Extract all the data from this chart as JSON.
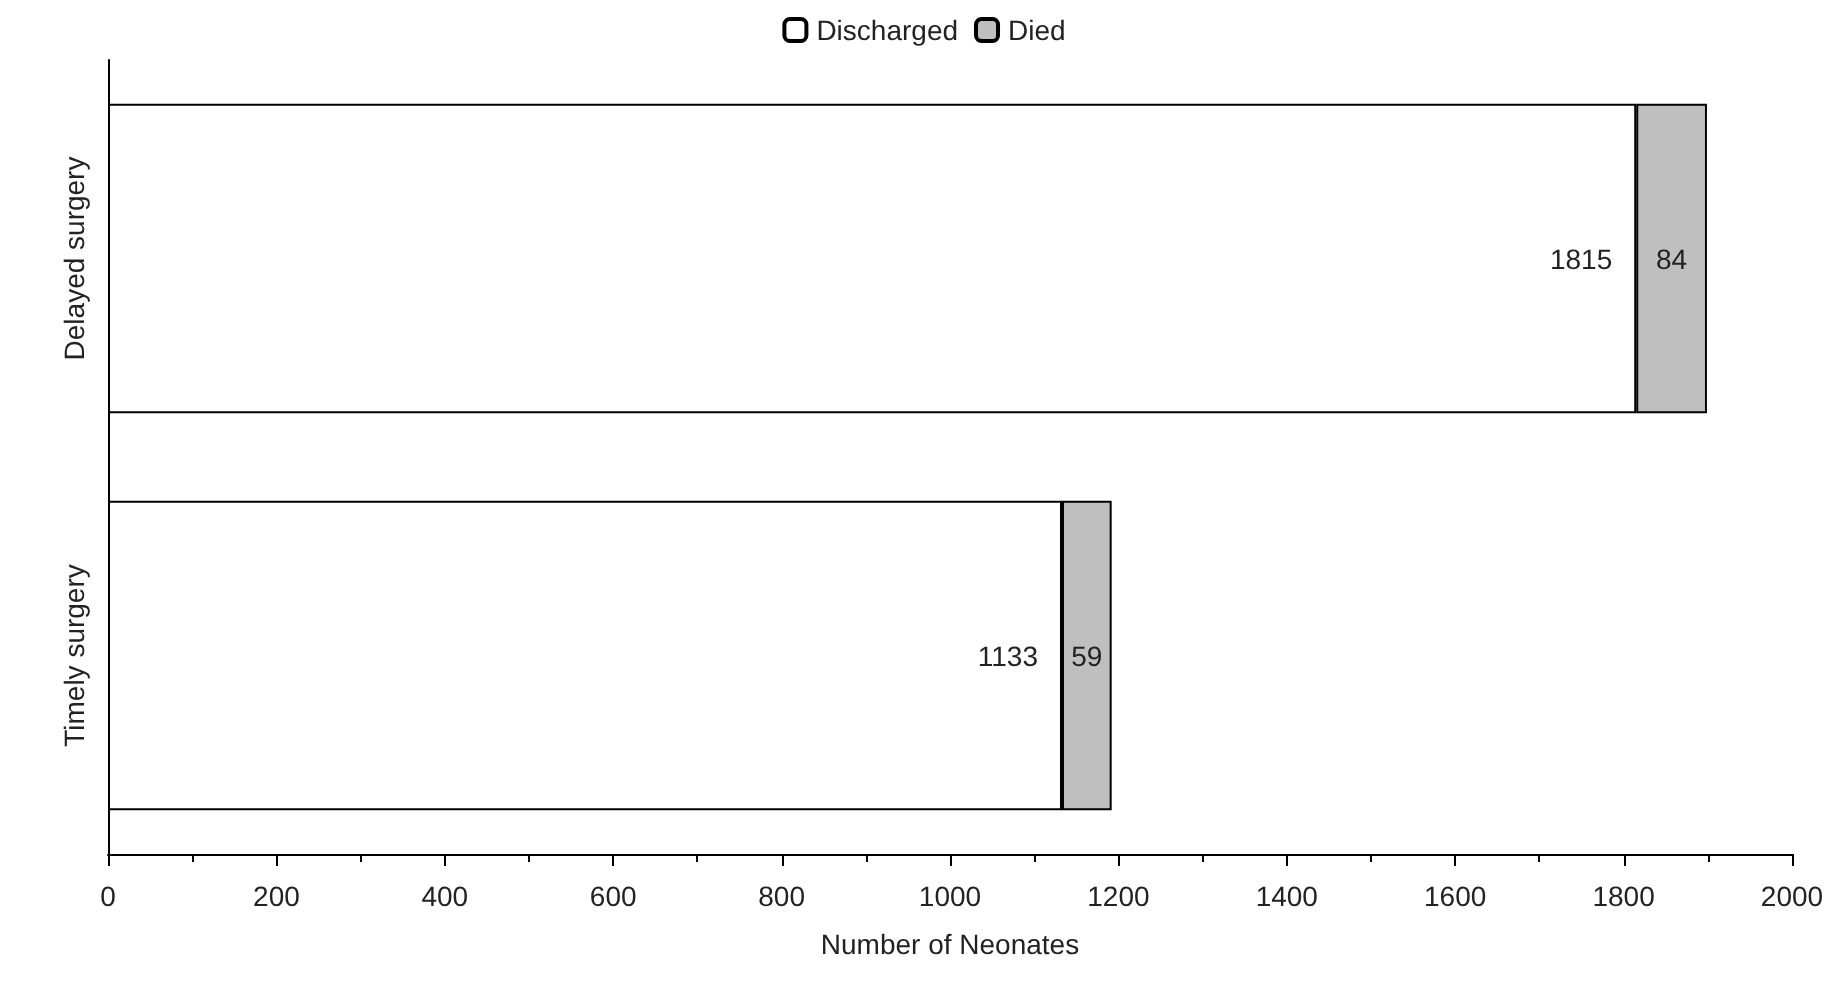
{
  "chart_data": {
    "type": "bar",
    "orientation": "horizontal",
    "stacked": true,
    "xlabel": "Number of Neonates",
    "categories": [
      "Delayed surgery",
      "Timely surgery"
    ],
    "series": [
      {
        "name": "Discharged",
        "color": "#ffffff",
        "values": [
          1815,
          1133
        ]
      },
      {
        "name": "Died",
        "color": "#bfbfbf",
        "values": [
          84,
          59
        ]
      }
    ],
    "xlim": [
      0,
      2000
    ],
    "xticks": [
      0,
      200,
      400,
      600,
      800,
      1000,
      1200,
      1400,
      1600,
      1800,
      2000
    ],
    "data_labels": true,
    "legend": "top",
    "grid": false
  }
}
